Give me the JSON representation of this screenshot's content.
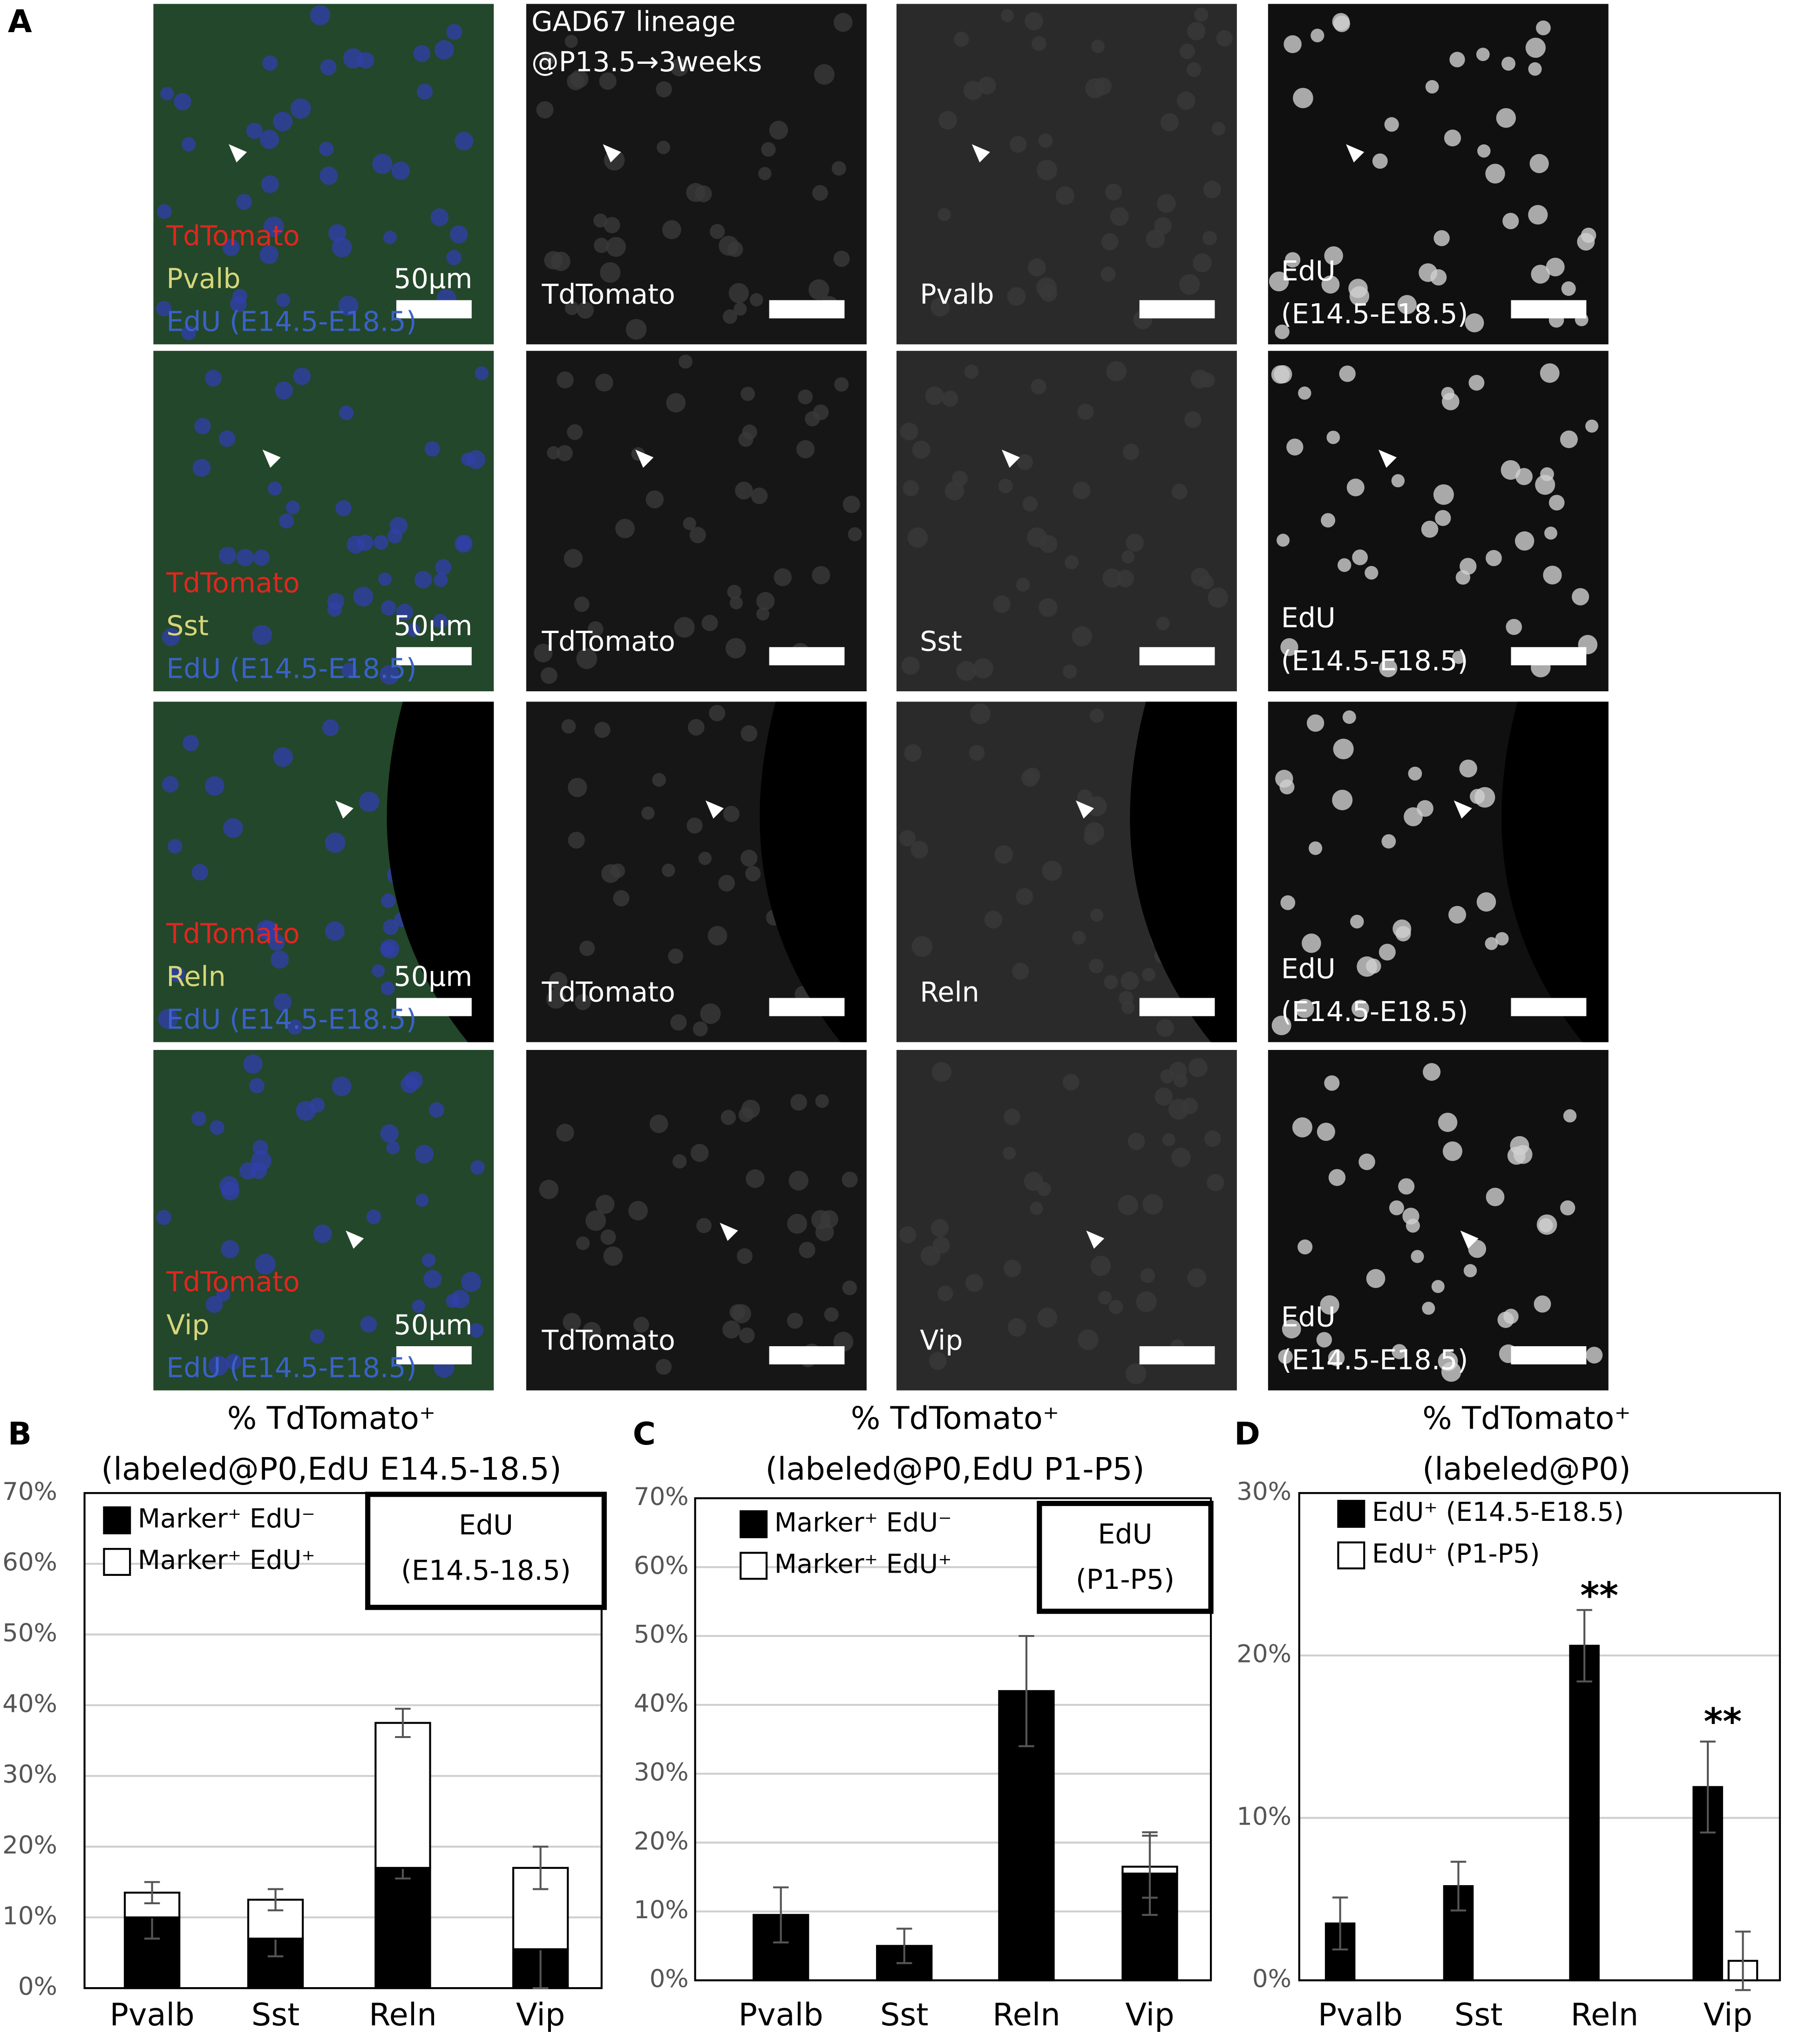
{
  "panel_a": {
    "label": "A",
    "header": [
      "GAD67 lineage",
      "@P13.5→3weeks"
    ],
    "rows": [
      {
        "merge": [
          "TdTomato",
          "Pvalb",
          "EdU (E14.5-E18.5)"
        ],
        "scale_label": "50μm",
        "tdtomato": "TdTomato",
        "marker": "Pvalb",
        "edu": [
          "EdU",
          "(E14.5-E18.5)"
        ]
      },
      {
        "merge": [
          "TdTomato",
          "Sst",
          "EdU (E14.5-E18.5)"
        ],
        "scale_label": "50μm",
        "tdtomato": "TdTomato",
        "marker": "Sst",
        "edu": [
          "EdU",
          "(E14.5-E18.5)"
        ]
      },
      {
        "merge": [
          "TdTomato",
          "Reln",
          "EdU (E14.5-E18.5)"
        ],
        "scale_label": "50μm",
        "tdtomato": "TdTomato",
        "marker": "Reln",
        "edu": [
          "EdU",
          "(E14.5-E18.5)"
        ]
      },
      {
        "merge": [
          "TdTomato",
          "Vip",
          "EdU (E14.5-E18.5)"
        ],
        "scale_label": "50μm",
        "tdtomato": "TdTomato",
        "marker": "Vip",
        "edu": [
          "EdU",
          "(E14.5-E18.5)"
        ]
      }
    ]
  },
  "chart_data": [
    {
      "type": "bar",
      "label": "B",
      "stacked": true,
      "title": "% TdTomato⁺",
      "subtitle": "(labeled@P0,EdU E14.5-18.5)",
      "categories": [
        "Pvalb",
        "Sst",
        "Reln",
        "Vip"
      ],
      "series": [
        {
          "name": "Marker⁺ EdU⁻",
          "color": "#000000",
          "values": [
            10,
            7,
            17,
            5.5
          ],
          "errors": [
            3,
            2.5,
            1.5,
            5.5
          ]
        },
        {
          "name": "Marker⁺ EdU⁺",
          "color": "#ffffff",
          "values": [
            3.5,
            5.5,
            20.5,
            11.5
          ],
          "errors": [
            1.5,
            1.5,
            2,
            3
          ]
        }
      ],
      "ylim": [
        0,
        70
      ],
      "yticks": [
        {
          "value": 0,
          "label": "0%"
        },
        {
          "value": 10,
          "label": "10%"
        },
        {
          "value": 20,
          "label": "20%"
        },
        {
          "value": 30,
          "label": "30%"
        },
        {
          "value": 40,
          "label": "40%"
        },
        {
          "value": 50,
          "label": "50%"
        },
        {
          "value": 60,
          "label": "60%"
        },
        {
          "value": 70,
          "label": "70%"
        }
      ],
      "grid": true,
      "legend": "top-left",
      "annotation_box": [
        "EdU",
        "(E14.5-18.5)"
      ]
    },
    {
      "type": "bar",
      "label": "C",
      "stacked": true,
      "title": "% TdTomato⁺",
      "subtitle": "(labeled@P0,EdU P1-P5)",
      "categories": [
        "Pvalb",
        "Sst",
        "Reln",
        "Vip"
      ],
      "series": [
        {
          "name": "Marker⁺ EdU⁻",
          "color": "#000000",
          "values": [
            9.5,
            5,
            42,
            15.5
          ],
          "errors": [
            4,
            2.5,
            8,
            6
          ]
        },
        {
          "name": "Marker⁺  EdU⁺",
          "color": "#ffffff",
          "values": [
            0,
            0,
            0,
            1
          ],
          "errors": [
            null,
            null,
            null,
            4.5
          ]
        }
      ],
      "ylim": [
        0,
        70
      ],
      "yticks": [
        {
          "value": 0,
          "label": "0%"
        },
        {
          "value": 10,
          "label": "10%"
        },
        {
          "value": 20,
          "label": "20%"
        },
        {
          "value": 30,
          "label": "30%"
        },
        {
          "value": 40,
          "label": "40%"
        },
        {
          "value": 50,
          "label": "50%"
        },
        {
          "value": 60,
          "label": "60%"
        },
        {
          "value": 70,
          "label": "70%"
        }
      ],
      "grid": true,
      "legend": "top-left",
      "annotation_box": [
        "EdU",
        "(P1-P5)"
      ]
    },
    {
      "type": "bar",
      "label": "D",
      "stacked": false,
      "title": "% TdTomato⁺",
      "subtitle": "(labeled@P0)",
      "categories": [
        "Pvalb",
        "Sst",
        "Reln",
        "Vip"
      ],
      "series": [
        {
          "name": "EdU⁺ (E14.5-E18.5)",
          "color": "#000000",
          "values": [
            3.5,
            5.8,
            20.6,
            11.9
          ],
          "errors": [
            1.6,
            1.5,
            2.2,
            2.8
          ]
        },
        {
          "name": "EdU⁺ (P1-P5)",
          "color": "#ffffff",
          "values": [
            0,
            0,
            0,
            1.2
          ],
          "errors": [
            null,
            null,
            null,
            1.8
          ]
        }
      ],
      "ylim": [
        0,
        30
      ],
      "yticks": [
        {
          "value": 0,
          "label": "0%"
        },
        {
          "value": 10,
          "label": "10%"
        },
        {
          "value": 20,
          "label": "20%"
        },
        {
          "value": 30,
          "label": "30%"
        }
      ],
      "grid": true,
      "legend": "top-left",
      "annotations": [
        {
          "category": "Reln",
          "text": "**"
        },
        {
          "category": "Vip",
          "text": "**"
        }
      ]
    }
  ]
}
